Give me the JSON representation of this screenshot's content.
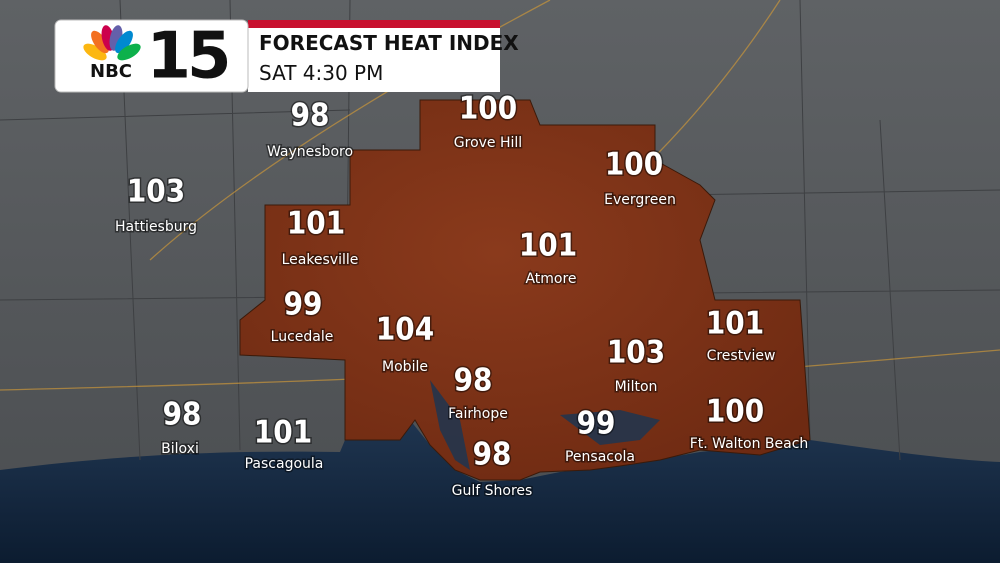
{
  "header": {
    "logo_network": "NBC",
    "logo_channel": "15",
    "title": "FORECAST HEAT INDEX",
    "time": "SAT 4:30 PM"
  },
  "cities": [
    {
      "value": 98,
      "name": "Waynesboro"
    },
    {
      "value": 103,
      "name": "Hattiesburg"
    },
    {
      "value": 100,
      "name": "Grove Hill"
    },
    {
      "value": 100,
      "name": "Evergreen"
    },
    {
      "value": 101,
      "name": "Leakesville"
    },
    {
      "value": 101,
      "name": "Atmore"
    },
    {
      "value": 99,
      "name": "Lucedale"
    },
    {
      "value": 104,
      "name": "Mobile"
    },
    {
      "value": 101,
      "name": "Crestview"
    },
    {
      "value": 103,
      "name": "Milton"
    },
    {
      "value": 98,
      "name": "Fairhope"
    },
    {
      "value": 98,
      "name": "Biloxi"
    },
    {
      "value": 101,
      "name": "Pascagoula"
    },
    {
      "value": 99,
      "name": "Pensacola"
    },
    {
      "value": 100,
      "name": "Ft. Walton Beach"
    },
    {
      "value": 98,
      "name": "Gulf Shores"
    }
  ]
}
